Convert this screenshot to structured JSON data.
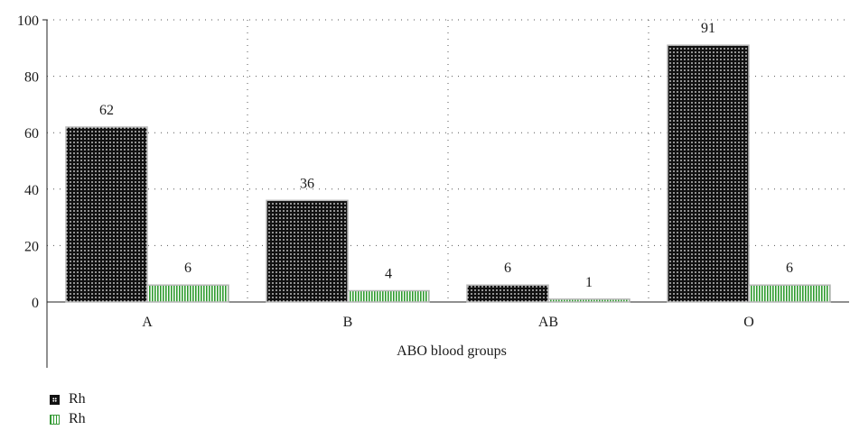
{
  "chart_data": {
    "type": "bar",
    "categories": [
      "A",
      "B",
      "AB",
      "O"
    ],
    "series": [
      {
        "name": "Rh",
        "values": [
          62,
          36,
          6,
          91
        ],
        "color": "#111111",
        "pattern": "dots"
      },
      {
        "name": "Rh",
        "values": [
          6,
          4,
          1,
          6
        ],
        "color": "#2e9b2e",
        "pattern": "vertical-stripes"
      }
    ],
    "data_labels": [
      [
        "62",
        "36",
        "6",
        "91"
      ],
      [
        "6",
        "4",
        "1",
        "6"
      ]
    ],
    "title": "",
    "xlabel": "ABO blood groups",
    "ylabel": "",
    "ylim": [
      0,
      100
    ],
    "yticks": [
      "0",
      "20",
      "40",
      "60",
      "80",
      "100"
    ],
    "grid": "dotted",
    "legend": {
      "position": "bottom-left",
      "entries": [
        "Rh",
        "Rh"
      ]
    }
  }
}
